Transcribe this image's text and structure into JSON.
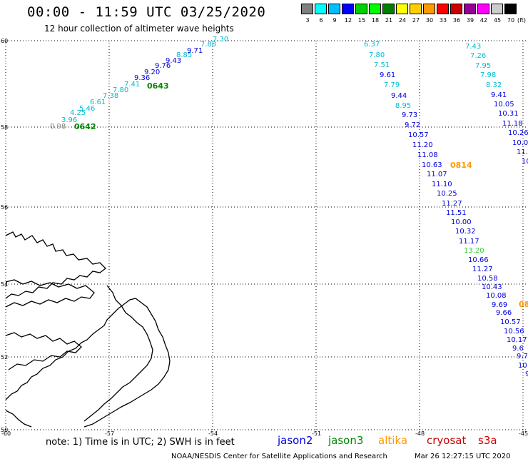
{
  "header": {
    "title": "00:00 - 11:59 UTC 03/25/2020",
    "subtitle": "12 hour collection of altimeter wave heights"
  },
  "legend": {
    "unit": "(ft)",
    "colors": [
      "#808080",
      "#00ffff",
      "#00bfff",
      "#0000ff",
      "#00d000",
      "#00ff00",
      "#008000",
      "#ffff00",
      "#ffd000",
      "#ff9900",
      "#ff0000",
      "#cc0000",
      "#990099",
      "#ff00ff",
      "#cccccc",
      "#000000"
    ],
    "labels": [
      "3",
      "6",
      "9",
      "12",
      "15",
      "18",
      "21",
      "24",
      "27",
      "30",
      "33",
      "36",
      "39",
      "42",
      "45",
      "70"
    ]
  },
  "axes": {
    "lat_labels": [
      "60",
      "58",
      "56",
      "54",
      "52",
      "50"
    ],
    "lon_labels": [
      "-60",
      "-57",
      "-54",
      "-51",
      "-48",
      "-45"
    ]
  },
  "colors": {
    "jason2": "#0000dd",
    "jason3": "#008800",
    "altika": "#ff9900",
    "cryosat": "#cc0000",
    "s3a": "#cc0000",
    "cyan": "#00bcd4",
    "light_green": "#33cc33",
    "gray": "#808080"
  },
  "tracks": [
    {
      "id": "track-west",
      "time_labels": [
        {
          "text": "0642",
          "color": "#008800"
        },
        {
          "text": "0643",
          "color": "#008800"
        }
      ],
      "points": [
        {
          "v": "0.98",
          "c": "#808080"
        },
        {
          "v": "3.96",
          "c": "#00bcd4"
        },
        {
          "v": "4.25",
          "c": "#00bcd4"
        },
        {
          "v": "5.46",
          "c": "#00bcd4"
        },
        {
          "v": "6.61",
          "c": "#00bcd4"
        },
        {
          "v": "7.38",
          "c": "#00bcd4"
        },
        {
          "v": "7.80",
          "c": "#00bcd4"
        },
        {
          "v": "7.41",
          "c": "#00bcd4"
        },
        {
          "v": "9.36",
          "c": "#0000dd"
        },
        {
          "v": "9.20",
          "c": "#0000dd"
        },
        {
          "v": "9.76",
          "c": "#0000dd"
        },
        {
          "v": "9.43",
          "c": "#0000dd"
        },
        {
          "v": "8.85",
          "c": "#00bcd4"
        },
        {
          "v": "9.71",
          "c": "#0000dd"
        },
        {
          "v": "7.88",
          "c": "#00bcd4"
        },
        {
          "v": "7.30",
          "c": "#00bcd4"
        }
      ]
    },
    {
      "id": "track-middle",
      "time_labels": [
        {
          "text": "0814",
          "color": "#ff9900"
        }
      ],
      "points": [
        {
          "v": "6.37",
          "c": "#00bcd4"
        },
        {
          "v": "7.80",
          "c": "#00bcd4"
        },
        {
          "v": "7.51",
          "c": "#00bcd4"
        },
        {
          "v": "9.61",
          "c": "#0000dd"
        },
        {
          "v": "7.79",
          "c": "#00bcd4"
        },
        {
          "v": "9.44",
          "c": "#0000dd"
        },
        {
          "v": "8.95",
          "c": "#00bcd4"
        },
        {
          "v": "9.73",
          "c": "#0000dd"
        },
        {
          "v": "9.72",
          "c": "#0000dd"
        },
        {
          "v": "10.57",
          "c": "#0000dd"
        },
        {
          "v": "11.20",
          "c": "#0000dd"
        },
        {
          "v": "11.08",
          "c": "#0000dd"
        },
        {
          "v": "10.63",
          "c": "#0000dd"
        },
        {
          "v": "11.07",
          "c": "#0000dd"
        },
        {
          "v": "11.10",
          "c": "#0000dd"
        },
        {
          "v": "10.25",
          "c": "#0000dd"
        },
        {
          "v": "11.27",
          "c": "#0000dd"
        },
        {
          "v": "11.51",
          "c": "#0000dd"
        },
        {
          "v": "10.00",
          "c": "#0000dd"
        },
        {
          "v": "10.32",
          "c": "#0000dd"
        },
        {
          "v": "11.17",
          "c": "#0000dd"
        },
        {
          "v": "13.20",
          "c": "#33cc33"
        },
        {
          "v": "10.66",
          "c": "#0000dd"
        },
        {
          "v": "11.27",
          "c": "#0000dd"
        },
        {
          "v": "10.58",
          "c": "#0000dd"
        },
        {
          "v": "10.43",
          "c": "#0000dd"
        },
        {
          "v": "10.08",
          "c": "#0000dd"
        },
        {
          "v": "9.69",
          "c": "#0000dd"
        },
        {
          "v": "9.66",
          "c": "#0000dd"
        },
        {
          "v": "10.57",
          "c": "#0000dd"
        },
        {
          "v": "10.56",
          "c": "#0000dd"
        },
        {
          "v": "10.17",
          "c": "#0000dd"
        },
        {
          "v": "9.6",
          "c": "#0000dd"
        },
        {
          "v": "9.7",
          "c": "#0000dd"
        },
        {
          "v": "10",
          "c": "#0000dd"
        },
        {
          "v": "9",
          "c": "#0000dd"
        }
      ]
    },
    {
      "id": "track-east",
      "time_labels": [
        {
          "text": "08",
          "color": "#ff9900"
        }
      ],
      "points": [
        {
          "v": "7.43",
          "c": "#00bcd4"
        },
        {
          "v": "7.26",
          "c": "#00bcd4"
        },
        {
          "v": "7.95",
          "c": "#00bcd4"
        },
        {
          "v": "7.98",
          "c": "#00bcd4"
        },
        {
          "v": "8.32",
          "c": "#00bcd4"
        },
        {
          "v": "9.41",
          "c": "#0000dd"
        },
        {
          "v": "10.05",
          "c": "#0000dd"
        },
        {
          "v": "10.31",
          "c": "#0000dd"
        },
        {
          "v": "11.18",
          "c": "#0000dd"
        },
        {
          "v": "10.26",
          "c": "#0000dd"
        },
        {
          "v": "10.0",
          "c": "#0000dd"
        },
        {
          "v": "11.",
          "c": "#0000dd"
        },
        {
          "v": "10",
          "c": "#0000dd"
        }
      ]
    }
  ],
  "footer": {
    "note": "note: 1) Time is in UTC; 2) SWH is in feet",
    "missions": [
      "jason2",
      "jason3",
      "altika",
      "cryosat",
      "s3a"
    ],
    "credit": "NOAA/NESDIS Center for Satellite Applications and Research",
    "timestamp": "Mar 26 12:27:15 UTC 2020"
  }
}
